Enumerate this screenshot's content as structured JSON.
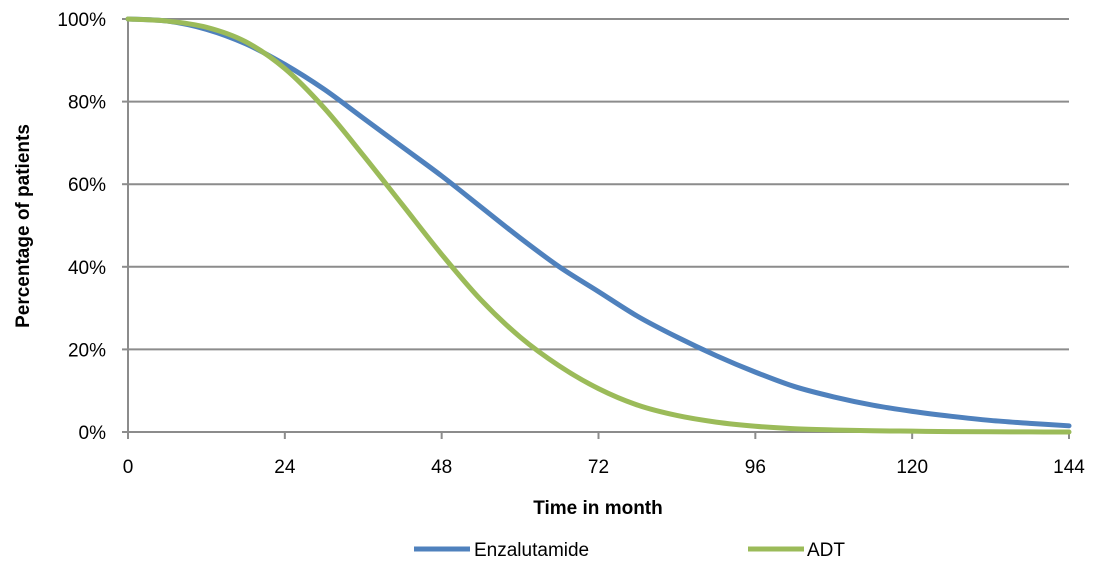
{
  "chart_data": {
    "type": "line",
    "title": "",
    "xlabel": "Time in month",
    "ylabel": "Percentage of patients",
    "xlim": [
      0,
      144
    ],
    "ylim": [
      0,
      100
    ],
    "x_ticks": [
      0,
      24,
      48,
      72,
      96,
      120,
      144
    ],
    "x_tick_labels": [
      "0",
      "24",
      "48",
      "72",
      "96",
      "120",
      "144"
    ],
    "y_ticks": [
      0,
      20,
      40,
      60,
      80,
      100
    ],
    "y_tick_labels": [
      "0%",
      "20%",
      "40%",
      "60%",
      "80%",
      "100%"
    ],
    "grid": "horizontal",
    "legend_position": "bottom",
    "x": [
      0,
      6,
      12,
      18,
      24,
      30,
      36,
      42,
      48,
      54,
      60,
      66,
      72,
      78,
      84,
      90,
      96,
      102,
      108,
      114,
      120,
      126,
      132,
      138,
      144
    ],
    "series": [
      {
        "name": "Enzalutamide",
        "color": "#4f81bd",
        "values": [
          100,
          99.5,
          97.5,
          94,
          89,
          83,
          76,
          69,
          62,
          54.5,
          47,
          40,
          34,
          28,
          23,
          18.5,
          14.5,
          11,
          8.5,
          6.5,
          5,
          3.8,
          2.8,
          2.1,
          1.5
        ]
      },
      {
        "name": "ADT",
        "color": "#9bbb59",
        "values": [
          100,
          99.5,
          98,
          94.5,
          88,
          78.5,
          67,
          55,
          43,
          32,
          23,
          16,
          10.5,
          6.5,
          4,
          2.4,
          1.4,
          0.8,
          0.5,
          0.3,
          0.2,
          0.1,
          0.05,
          0.02,
          0
        ]
      }
    ]
  }
}
